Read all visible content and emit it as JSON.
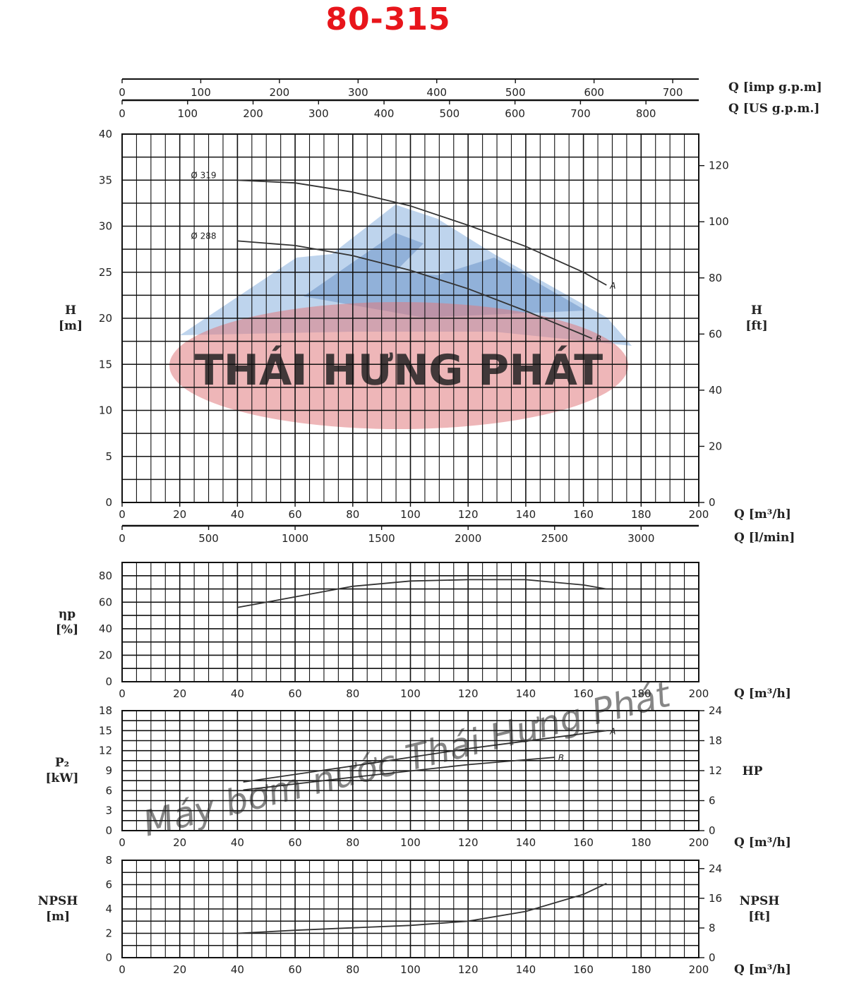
{
  "page": {
    "title": "80-315"
  },
  "colors": {
    "title": "#e8151b",
    "grid": "#111111",
    "curve": "#333333",
    "watermark_red": "#e07a7e",
    "watermark_blue": "#6f9fd6"
  },
  "watermarks": {
    "logo_text": "THÁI HƯNG PHÁT",
    "script_text": "Máy bơm nước Thái Hưng Phát"
  },
  "chart_data": [
    {
      "type": "line",
      "id": "head",
      "ylabel": "H",
      "ylabel_unit": "[m]",
      "y2label": "H",
      "y2label_unit": "[ft]",
      "xlabel": "Q [m³/h]",
      "xlabel2": "Q [l/min]",
      "top_axis1_label": "Q [imp g.p.m]",
      "top_axis2_label": "Q [US g.p.m.]",
      "xlim": [
        0,
        200
      ],
      "ylim": [
        0,
        40
      ],
      "grid": true,
      "x_ticks": [
        "0",
        "20",
        "40",
        "60",
        "80",
        "100",
        "120",
        "140",
        "160",
        "180",
        "200"
      ],
      "y_ticks": [
        "0",
        "5",
        "10",
        "15",
        "20",
        "25",
        "30",
        "35",
        "40"
      ],
      "y2_ticks": [
        "0",
        "20",
        "40",
        "60",
        "80",
        "100",
        "120"
      ],
      "y2_tick_values": [
        0,
        20,
        40,
        60,
        80,
        100,
        120
      ],
      "lmin_ticks": [
        "0",
        "500",
        "1000",
        "1500",
        "2000",
        "2500",
        "3000"
      ],
      "lmin_tick_values": [
        0,
        500,
        1000,
        1500,
        2000,
        2500,
        3000
      ],
      "imp_ticks": [
        "0",
        "100",
        "200",
        "300",
        "400",
        "500",
        "600",
        "700"
      ],
      "imp_tick_values": [
        0,
        100,
        200,
        300,
        400,
        500,
        600,
        700
      ],
      "us_ticks": [
        "0",
        "100",
        "200",
        "300",
        "400",
        "500",
        "600",
        "700",
        "800"
      ],
      "us_tick_values": [
        0,
        100,
        200,
        300,
        400,
        500,
        600,
        700,
        800
      ],
      "series": [
        {
          "name": "Ø 319",
          "end_label": "A",
          "x": [
            40,
            60,
            80,
            100,
            120,
            140,
            160,
            168
          ],
          "y": [
            35.0,
            34.7,
            33.7,
            32.2,
            30.1,
            27.8,
            25.0,
            23.6
          ]
        },
        {
          "name": "Ø 288",
          "end_label": "B",
          "x": [
            40,
            60,
            80,
            100,
            120,
            140,
            160,
            163
          ],
          "y": [
            28.4,
            27.9,
            26.8,
            25.2,
            23.2,
            20.8,
            18.2,
            17.8
          ]
        }
      ]
    },
    {
      "type": "line",
      "id": "efficiency",
      "ylabel": "ηp",
      "ylabel_unit": "[%]",
      "xlabel": "Q [m³/h]",
      "xlim": [
        0,
        200
      ],
      "ylim": [
        0,
        90
      ],
      "grid": true,
      "x_ticks": [
        "0",
        "20",
        "40",
        "60",
        "80",
        "100",
        "120",
        "140",
        "160",
        "180",
        "200"
      ],
      "y_ticks": [
        "0",
        "20",
        "40",
        "60",
        "80"
      ],
      "y_tick_values": [
        0,
        20,
        40,
        60,
        80
      ],
      "series": [
        {
          "x": [
            40,
            60,
            80,
            100,
            120,
            140,
            160,
            168
          ],
          "y": [
            56,
            64,
            72,
            76,
            77,
            77,
            73,
            70
          ]
        }
      ]
    },
    {
      "type": "line",
      "id": "power",
      "ylabel": "P₂",
      "ylabel_unit": "[kW]",
      "y2label": "HP",
      "xlabel": "Q [m³/h]",
      "xlim": [
        0,
        200
      ],
      "ylim": [
        0,
        18
      ],
      "grid": true,
      "x_ticks": [
        "0",
        "20",
        "40",
        "60",
        "80",
        "100",
        "120",
        "140",
        "160",
        "180",
        "200"
      ],
      "y_ticks": [
        "0",
        "3",
        "6",
        "9",
        "12",
        "15",
        "18"
      ],
      "y2_ticks": [
        "0",
        "6",
        "12",
        "18",
        "24"
      ],
      "y2_tick_values": [
        0,
        6,
        12,
        18,
        24
      ],
      "series": [
        {
          "end_label": "A",
          "x": [
            42,
            80,
            120,
            168
          ],
          "y": [
            7.3,
            9.7,
            12.3,
            15.0
          ]
        },
        {
          "end_label": "B",
          "x": [
            42,
            80,
            120,
            150
          ],
          "y": [
            6.1,
            8.0,
            9.9,
            11.0
          ]
        }
      ]
    },
    {
      "type": "line",
      "id": "npsh",
      "ylabel": "NPSH",
      "ylabel_unit": "[m]",
      "y2label": "NPSH",
      "y2label_unit": "[ft]",
      "xlabel": "Q [m³/h]",
      "xlim": [
        0,
        200
      ],
      "ylim": [
        0,
        8
      ],
      "grid": true,
      "x_ticks": [
        "0",
        "20",
        "40",
        "60",
        "80",
        "100",
        "120",
        "140",
        "160",
        "180",
        "200"
      ],
      "y_ticks": [
        "0",
        "2",
        "4",
        "6",
        "8"
      ],
      "y2_ticks": [
        "0",
        "8",
        "16",
        "24"
      ],
      "y2_tick_values": [
        0,
        8,
        16,
        24
      ],
      "series": [
        {
          "x": [
            40,
            60,
            80,
            100,
            120,
            140,
            160,
            168
          ],
          "y": [
            2.0,
            2.25,
            2.45,
            2.65,
            3.0,
            3.8,
            5.2,
            6.1
          ]
        }
      ]
    }
  ]
}
